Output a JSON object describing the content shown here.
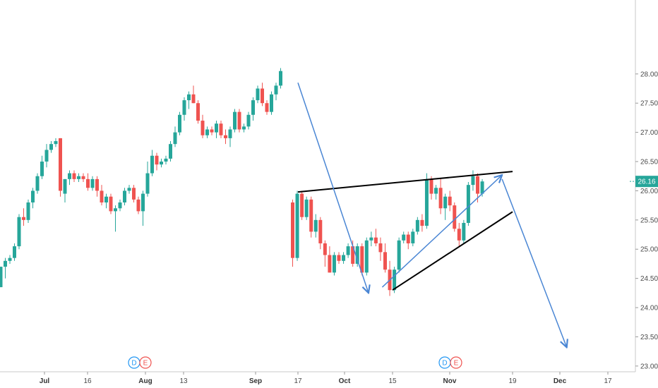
{
  "chart_data": {
    "type": "candlestick",
    "y_axis": {
      "position": "right",
      "min": 22.95,
      "max": 29.0,
      "ticks": [
        "23.00",
        "23.50",
        "24.00",
        "24.50",
        "25.00",
        "25.50",
        "26.00",
        "26.50",
        "27.00",
        "27.50",
        "28.00"
      ]
    },
    "x_axis": {
      "labels": [
        {
          "text": "Jul",
          "major": true
        },
        {
          "text": "16",
          "major": false
        },
        {
          "text": "Aug",
          "major": true
        },
        {
          "text": "13",
          "major": false
        },
        {
          "text": "Sep",
          "major": true
        },
        {
          "text": "17",
          "major": false
        },
        {
          "text": "Oct",
          "major": true
        },
        {
          "text": "15",
          "major": false
        },
        {
          "text": "Nov",
          "major": true
        },
        {
          "text": "19",
          "major": false
        },
        {
          "text": "Dec",
          "major": true
        },
        {
          "text": "17",
          "major": false
        }
      ]
    },
    "last_price": {
      "value": 26.16,
      "label": "26.16",
      "color": "#26a69a"
    },
    "colors": {
      "up": "#26a69a",
      "down": "#ef5350",
      "trend_blue": "#4a86d4",
      "trend_black": "#000000"
    },
    "event_markers": [
      {
        "labels": [
          "D",
          "E"
        ],
        "near": "Aug"
      },
      {
        "labels": [
          "D",
          "E"
        ],
        "near": "Nov"
      }
    ],
    "candles": [
      [
        24.35,
        24.7,
        24.35,
        24.7
      ],
      [
        24.7,
        24.85,
        24.5,
        24.8
      ],
      [
        24.8,
        24.9,
        24.75,
        24.85
      ],
      [
        24.85,
        25.1,
        24.8,
        25.05
      ],
      [
        25.05,
        25.6,
        25.0,
        25.55
      ],
      [
        25.55,
        25.7,
        25.4,
        25.5
      ],
      [
        25.5,
        25.85,
        25.45,
        25.8
      ],
      [
        25.8,
        26.05,
        25.7,
        26.0
      ],
      [
        26.0,
        26.3,
        25.95,
        26.25
      ],
      [
        26.25,
        26.6,
        26.2,
        26.5
      ],
      [
        26.5,
        26.8,
        26.4,
        26.7
      ],
      [
        26.7,
        26.85,
        26.65,
        26.8
      ],
      [
        26.8,
        26.9,
        26.75,
        26.85
      ],
      [
        26.9,
        26.9,
        25.9,
        26.0
      ],
      [
        25.95,
        26.2,
        25.8,
        26.2
      ],
      [
        26.2,
        26.35,
        26.1,
        26.3
      ],
      [
        26.3,
        26.35,
        26.15,
        26.2
      ],
      [
        26.2,
        26.3,
        26.15,
        26.25
      ],
      [
        26.25,
        26.3,
        26.15,
        26.2
      ],
      [
        26.2,
        26.3,
        26.0,
        26.05
      ],
      [
        26.05,
        26.25,
        26.0,
        26.2
      ],
      [
        26.2,
        26.25,
        25.9,
        26.0
      ],
      [
        26.0,
        26.1,
        25.75,
        25.8
      ],
      [
        25.8,
        25.95,
        25.7,
        25.9
      ],
      [
        25.9,
        25.95,
        25.6,
        25.65
      ],
      [
        25.65,
        25.75,
        25.3,
        25.7
      ],
      [
        25.7,
        25.85,
        25.65,
        25.8
      ],
      [
        25.8,
        26.05,
        25.75,
        26.0
      ],
      [
        26.0,
        26.1,
        25.95,
        26.05
      ],
      [
        26.05,
        26.1,
        25.8,
        25.85
      ],
      [
        25.85,
        25.9,
        25.6,
        25.65
      ],
      [
        25.65,
        26.0,
        25.4,
        25.95
      ],
      [
        25.95,
        26.5,
        25.9,
        26.3
      ],
      [
        26.3,
        26.7,
        26.25,
        26.6
      ],
      [
        26.6,
        26.65,
        26.35,
        26.45
      ],
      [
        26.45,
        26.55,
        26.4,
        26.5
      ],
      [
        26.5,
        26.6,
        26.45,
        26.55
      ],
      [
        26.55,
        26.85,
        26.5,
        26.8
      ],
      [
        26.8,
        27.1,
        26.75,
        27.0
      ],
      [
        27.0,
        27.35,
        26.95,
        27.3
      ],
      [
        27.3,
        27.6,
        27.2,
        27.55
      ],
      [
        27.55,
        27.7,
        27.4,
        27.65
      ],
      [
        27.65,
        27.8,
        27.5,
        27.5
      ],
      [
        27.5,
        27.55,
        27.15,
        27.2
      ],
      [
        27.2,
        27.3,
        26.9,
        26.95
      ],
      [
        26.95,
        27.1,
        26.9,
        27.05
      ],
      [
        27.05,
        27.1,
        26.95,
        27.0
      ],
      [
        27.0,
        27.2,
        26.9,
        27.15
      ],
      [
        27.15,
        27.2,
        26.9,
        26.95
      ],
      [
        26.95,
        27.05,
        26.8,
        26.9
      ],
      [
        26.9,
        27.1,
        26.75,
        27.05
      ],
      [
        27.05,
        27.4,
        27.0,
        27.35
      ],
      [
        27.35,
        27.4,
        27.0,
        27.05
      ],
      [
        27.05,
        27.15,
        27.0,
        27.1
      ],
      [
        27.1,
        27.35,
        27.05,
        27.3
      ],
      [
        27.3,
        27.6,
        27.2,
        27.55
      ],
      [
        27.55,
        27.8,
        27.5,
        27.75
      ],
      [
        27.75,
        27.85,
        27.45,
        27.5
      ],
      [
        27.5,
        27.55,
        27.3,
        27.35
      ],
      [
        27.35,
        27.7,
        27.3,
        27.65
      ],
      [
        27.65,
        27.85,
        27.55,
        27.8
      ],
      [
        27.8,
        28.1,
        27.75,
        28.05
      ],
      [
        25.8,
        25.85,
        24.7,
        24.85
      ],
      [
        24.85,
        26.0,
        24.8,
        25.95
      ],
      [
        25.95,
        26.0,
        25.5,
        25.55
      ],
      [
        25.55,
        25.9,
        25.5,
        25.85
      ],
      [
        25.85,
        25.9,
        25.2,
        25.3
      ],
      [
        25.3,
        25.6,
        25.2,
        25.5
      ],
      [
        25.5,
        25.55,
        25.0,
        25.1
      ],
      [
        25.1,
        25.15,
        24.7,
        24.9
      ],
      [
        24.9,
        25.05,
        24.6,
        24.6
      ],
      [
        24.6,
        24.95,
        24.55,
        24.9
      ],
      [
        24.9,
        24.95,
        24.75,
        24.8
      ],
      [
        24.8,
        24.95,
        24.75,
        24.9
      ],
      [
        24.9,
        25.1,
        24.85,
        25.05
      ],
      [
        25.05,
        25.15,
        24.7,
        24.75
      ],
      [
        24.75,
        25.1,
        24.7,
        25.05
      ],
      [
        25.05,
        25.1,
        24.55,
        24.6
      ],
      [
        24.6,
        25.2,
        24.55,
        25.15
      ],
      [
        25.15,
        25.3,
        25.05,
        25.2
      ],
      [
        25.2,
        25.35,
        25.05,
        25.1
      ],
      [
        25.1,
        25.2,
        24.8,
        24.95
      ],
      [
        24.95,
        25.1,
        24.6,
        24.65
      ],
      [
        24.65,
        24.8,
        24.2,
        24.3
      ],
      [
        24.3,
        24.7,
        24.25,
        24.65
      ],
      [
        24.65,
        25.2,
        24.6,
        25.15
      ],
      [
        25.15,
        25.3,
        25.1,
        25.25
      ],
      [
        25.25,
        25.3,
        25.0,
        25.1
      ],
      [
        25.1,
        25.35,
        25.05,
        25.3
      ],
      [
        25.3,
        25.55,
        25.25,
        25.5
      ],
      [
        25.5,
        25.6,
        25.3,
        25.4
      ],
      [
        25.4,
        26.3,
        25.35,
        26.2
      ],
      [
        26.2,
        26.25,
        25.85,
        25.95
      ],
      [
        25.95,
        26.1,
        25.85,
        26.05
      ],
      [
        26.05,
        26.2,
        25.6,
        25.7
      ],
      [
        25.7,
        25.95,
        25.5,
        25.9
      ],
      [
        25.9,
        26.0,
        25.65,
        25.75
      ],
      [
        25.75,
        25.8,
        25.3,
        25.35
      ],
      [
        25.35,
        25.45,
        25.05,
        25.15
      ],
      [
        25.15,
        25.5,
        25.1,
        25.45
      ],
      [
        25.45,
        26.15,
        25.4,
        26.1
      ],
      [
        26.1,
        26.35,
        26.0,
        26.25
      ],
      [
        26.25,
        26.3,
        25.8,
        25.95
      ],
      [
        25.95,
        26.2,
        25.9,
        26.16
      ]
    ],
    "trend_lines": [
      {
        "name": "wedge-top",
        "color": "black",
        "points": [
          [
            "2018-09-17",
            25.98
          ],
          [
            "2018-11-19",
            26.33
          ]
        ],
        "arrow": false
      },
      {
        "name": "wedge-bottom",
        "color": "black",
        "points": [
          [
            "2018-10-15",
            24.3
          ],
          [
            "2018-11-19",
            25.64
          ]
        ],
        "arrow": false
      },
      {
        "name": "rise-arrow",
        "color": "blue",
        "points": [
          [
            "2018-10-12",
            24.35
          ],
          [
            "2018-11-16",
            26.27
          ]
        ],
        "arrow": true
      },
      {
        "name": "drop-arrow",
        "color": "blue",
        "points": [
          [
            "2018-09-17",
            27.85
          ],
          [
            "2018-10-08",
            24.25
          ]
        ],
        "arrow": true
      },
      {
        "name": "projection-arrow",
        "color": "blue",
        "points": [
          [
            "2018-11-16",
            26.2
          ],
          [
            "2018-12-05",
            23.32
          ]
        ],
        "arrow": true
      }
    ]
  }
}
